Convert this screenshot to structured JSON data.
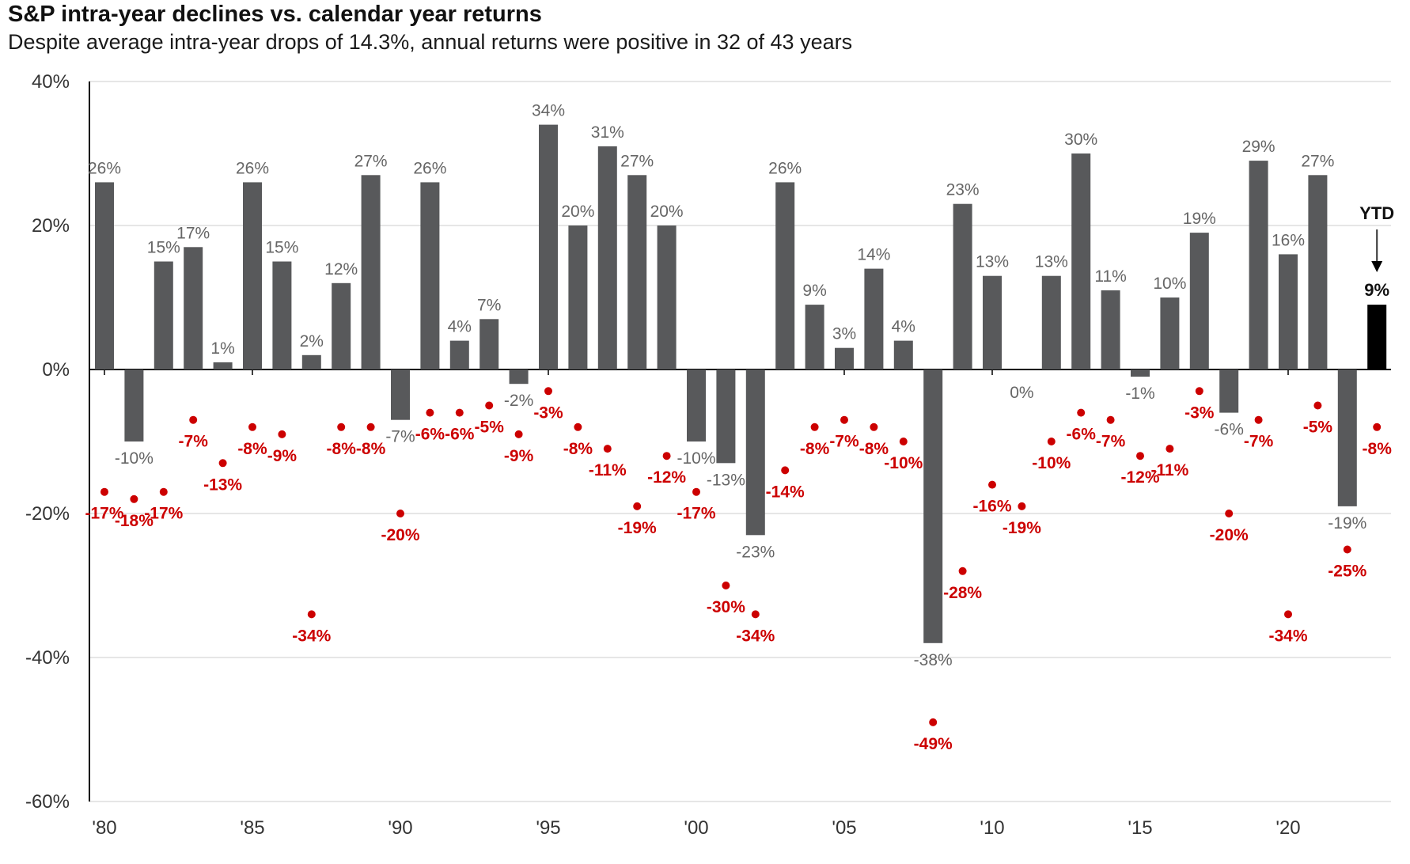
{
  "chart_data": {
    "type": "bar",
    "title": "S&P intra-year declines vs. calendar year returns",
    "subtitle": "Despite average intra-year drops of 14.3%, annual returns were positive in 32 of 43 years",
    "ylim": [
      -60,
      40
    ],
    "yticks": [
      40,
      20,
      0,
      -20,
      -40,
      -60
    ],
    "ytick_labels": [
      "40%",
      "20%",
      "0%",
      "-20%",
      "-40%",
      "-60%"
    ],
    "x_tick_labels": [
      "'80",
      "'85",
      "'90",
      "'95",
      "'00",
      "'05",
      "'10",
      "'15",
      "'20"
    ],
    "x_tick_years": [
      1980,
      1985,
      1990,
      1995,
      2000,
      2005,
      2010,
      2015,
      2020
    ],
    "years": [
      1980,
      1981,
      1982,
      1983,
      1984,
      1985,
      1986,
      1987,
      1988,
      1989,
      1990,
      1991,
      1992,
      1993,
      1994,
      1995,
      1996,
      1997,
      1998,
      1999,
      2000,
      2001,
      2002,
      2003,
      2004,
      2005,
      2006,
      2007,
      2008,
      2009,
      2010,
      2011,
      2012,
      2013,
      2014,
      2015,
      2016,
      2017,
      2018,
      2019,
      2020,
      2021,
      2022,
      2023
    ],
    "series": [
      {
        "name": "Calendar year return",
        "color": "#58595b",
        "ytd_color": "#000000",
        "values": [
          26,
          -10,
          15,
          17,
          1,
          26,
          15,
          2,
          12,
          27,
          -7,
          26,
          4,
          7,
          -2,
          34,
          20,
          31,
          27,
          20,
          -10,
          -13,
          -23,
          26,
          9,
          3,
          14,
          4,
          -38,
          23,
          13,
          0,
          13,
          30,
          11,
          -1,
          10,
          19,
          -6,
          29,
          16,
          27,
          -19,
          9
        ],
        "labels": [
          "26%",
          "-10%",
          "15%",
          "17%",
          "1%",
          "26%",
          "15%",
          "2%",
          "12%",
          "27%",
          "-7%",
          "26%",
          "4%",
          "7%",
          "-2%",
          "34%",
          "20%",
          "31%",
          "27%",
          "20%",
          "-10%",
          "-13%",
          "-23%",
          "26%",
          "9%",
          "3%",
          "14%",
          "4%",
          "-38%",
          "23%",
          "13%",
          "0%",
          "13%",
          "30%",
          "11%",
          "-1%",
          "10%",
          "19%",
          "-6%",
          "29%",
          "16%",
          "27%",
          "-19%",
          "9%"
        ]
      },
      {
        "name": "Intra-year decline",
        "color": "#cc0000",
        "values": [
          -17,
          -18,
          -17,
          -7,
          -13,
          -8,
          -9,
          -34,
          -8,
          -8,
          -20,
          -6,
          -6,
          -5,
          -9,
          -3,
          -8,
          -11,
          -19,
          -12,
          -17,
          -30,
          -34,
          -14,
          -8,
          -7,
          -8,
          -10,
          -49,
          -28,
          -16,
          -19,
          -10,
          -6,
          -7,
          -12,
          -11,
          -3,
          -20,
          -7,
          -34,
          -5,
          -25,
          -8
        ],
        "labels": [
          "-17%",
          "-18%",
          "-17%",
          "-7%",
          "-13%",
          "-8%",
          "-9%",
          "-34%",
          "-8%",
          "-8%",
          "-20%",
          "-6%",
          "-6%",
          "-5%",
          "-9%",
          "-3%",
          "-8%",
          "-11%",
          "-19%",
          "-12%",
          "-17%",
          "-30%",
          "-34%",
          "-14%",
          "-8%",
          "-7%",
          "-8%",
          "-10%",
          "-49%",
          "-28%",
          "-16%",
          "-19%",
          "-10%",
          "-6%",
          "-7%",
          "-12%",
          "-11%",
          "-3%",
          "-20%",
          "-7%",
          "-34%",
          "-5%",
          "-25%",
          "-8%"
        ]
      }
    ],
    "ytd_label": "YTD",
    "ytd_value_label": "9%"
  }
}
